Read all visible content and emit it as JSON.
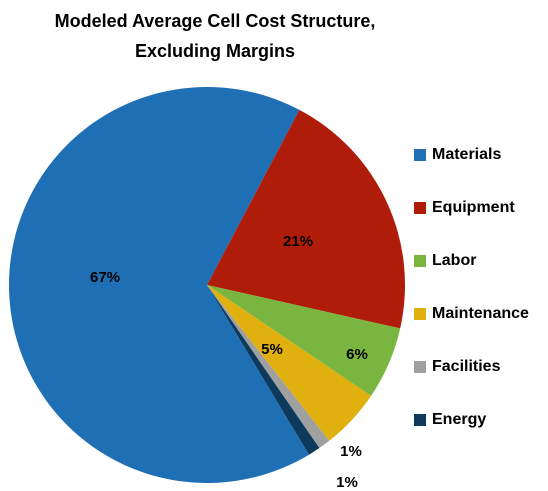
{
  "chart_data": {
    "type": "pie",
    "title": [
      "Modeled Average Cell Cost Structure,",
      "Excluding Margins"
    ],
    "categories": [
      "Materials",
      "Equipment",
      "Labor",
      "Maintenance",
      "Facilities",
      "Energy"
    ],
    "values": [
      67,
      21,
      6,
      5,
      1,
      1
    ],
    "value_labels": [
      "67%",
      "21%",
      "6%",
      "5%",
      "1%",
      "1%"
    ],
    "colors": [
      "#1f6fb5",
      "#b01c0a",
      "#7ab540",
      "#e0b00e",
      "#a0a0a0",
      "#0d3a5c"
    ],
    "legend": "right"
  }
}
